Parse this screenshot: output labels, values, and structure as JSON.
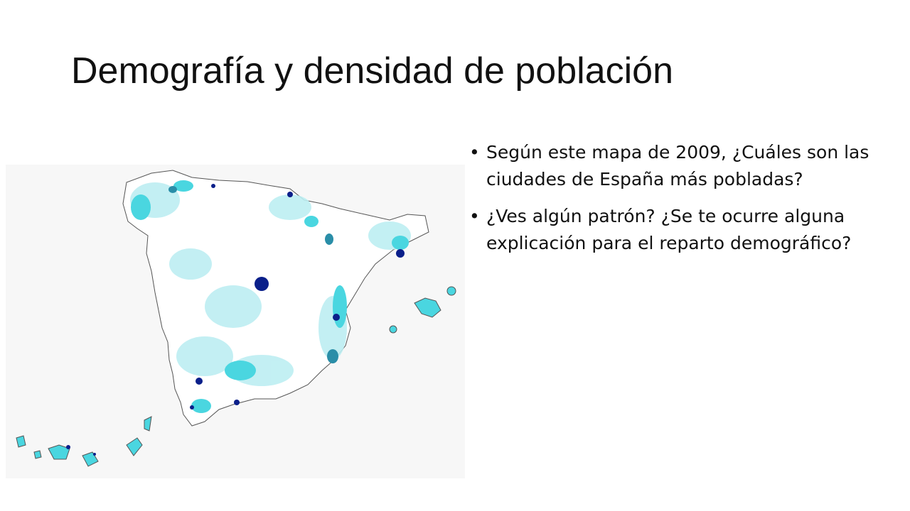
{
  "slide": {
    "title": "Demografía y densidad de población",
    "bullets": [
      {
        "text": "Según este mapa de 2009, ¿Cuáles son las ciudades de España más pobladas?"
      },
      {
        "text": "¿Ves algún patrón? ¿Se te ocurre alguna explicación para el reparto demográfico?"
      }
    ]
  },
  "map": {
    "colors": {
      "background": "#f7f7f7",
      "land": "#ffffff",
      "low": "#bdeef2",
      "medium": "#4ad6e0",
      "high": "#2a8ea8",
      "highest": "#0a1f8a",
      "border": "#555555"
    }
  }
}
